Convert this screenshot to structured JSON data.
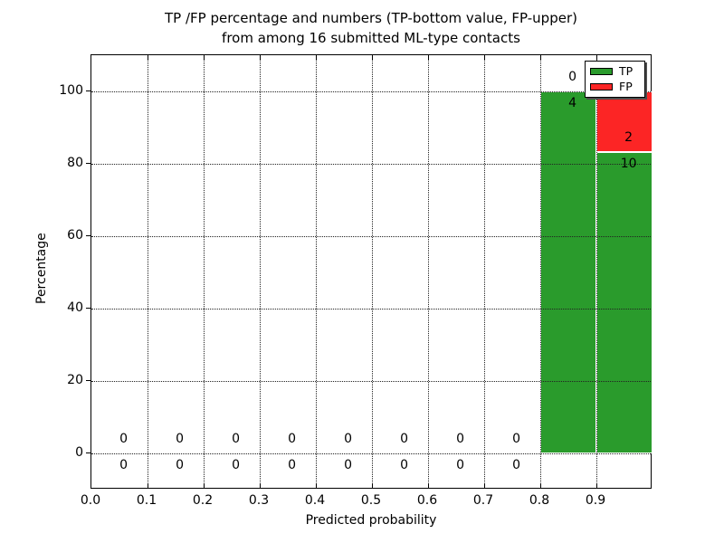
{
  "title": {
    "line1": "TP /FP percentage and numbers (TP-bottom value, FP-upper)",
    "line2": "from among 16 submitted ML-type contacts"
  },
  "axes": {
    "xlabel": "Predicted probability",
    "ylabel": "Percentage",
    "x_tick_labels": [
      "0.0",
      "0.1",
      "0.2",
      "0.3",
      "0.4",
      "0.5",
      "0.6",
      "0.7",
      "0.8",
      "0.9"
    ],
    "x_tick_values": [
      0.0,
      0.1,
      0.2,
      0.3,
      0.4,
      0.5,
      0.6,
      0.7,
      0.8,
      0.9
    ],
    "y_tick_labels": [
      "0",
      "20",
      "40",
      "60",
      "80",
      "100"
    ],
    "y_tick_values": [
      0,
      20,
      40,
      60,
      80,
      100
    ]
  },
  "legend": {
    "position": "upper right",
    "entries": [
      {
        "label": "TP",
        "color": "#2a9b2c"
      },
      {
        "label": "FP",
        "color": "#fc2525"
      }
    ]
  },
  "colors": {
    "tp": "#2a9b2c",
    "fp": "#fc2525",
    "bar_edge": "#ffffff",
    "grid": "#222222",
    "text": "#000000",
    "background": "#ffffff"
  },
  "chart_data": {
    "type": "bar",
    "stacked": true,
    "title": "TP /FP percentage and numbers (TP-bottom value, FP-upper) from among 16 submitted ML-type contacts",
    "xlabel": "Predicted probability",
    "ylabel": "Percentage",
    "xlim": [
      0.0,
      1.0
    ],
    "ylim": [
      -10,
      110
    ],
    "grid": true,
    "legend_position": "upper right",
    "bin_width": 0.1,
    "total_contacts": 16,
    "label_x_offset": 0.0575,
    "series_names": [
      "TP",
      "FP"
    ],
    "bins": [
      {
        "x0": 0.0,
        "tp_count": 0,
        "fp_count": 0,
        "tp_pct": 0,
        "fp_pct": 0
      },
      {
        "x0": 0.1,
        "tp_count": 0,
        "fp_count": 0,
        "tp_pct": 0,
        "fp_pct": 0
      },
      {
        "x0": 0.2,
        "tp_count": 0,
        "fp_count": 0,
        "tp_pct": 0,
        "fp_pct": 0
      },
      {
        "x0": 0.3,
        "tp_count": 0,
        "fp_count": 0,
        "tp_pct": 0,
        "fp_pct": 0
      },
      {
        "x0": 0.4,
        "tp_count": 0,
        "fp_count": 0,
        "tp_pct": 0,
        "fp_pct": 0
      },
      {
        "x0": 0.5,
        "tp_count": 0,
        "fp_count": 0,
        "tp_pct": 0,
        "fp_pct": 0
      },
      {
        "x0": 0.6,
        "tp_count": 0,
        "fp_count": 0,
        "tp_pct": 0,
        "fp_pct": 0
      },
      {
        "x0": 0.7,
        "tp_count": 0,
        "fp_count": 0,
        "tp_pct": 0,
        "fp_pct": 0
      },
      {
        "x0": 0.8,
        "tp_count": 4,
        "fp_count": 0,
        "tp_pct": 100,
        "fp_pct": 0
      },
      {
        "x0": 0.9,
        "tp_count": 10,
        "fp_count": 2,
        "tp_pct": 83.3333,
        "fp_pct": 16.6667
      }
    ]
  }
}
